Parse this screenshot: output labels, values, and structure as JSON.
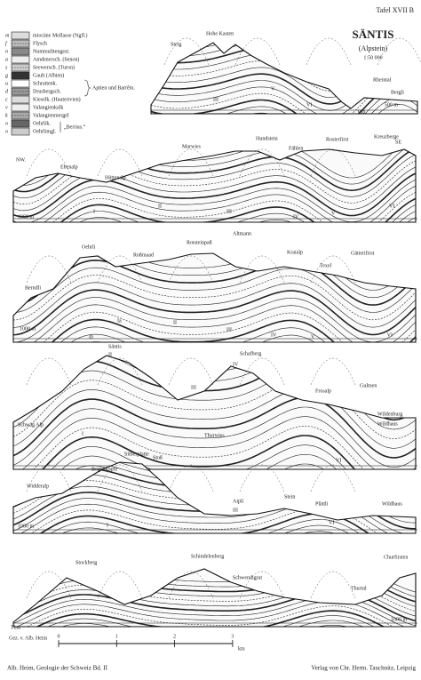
{
  "header": {
    "plate": "Tafel XVII B",
    "title": "SÄNTIS",
    "subtitle": "(Alpstein)",
    "scale": "1:50 000"
  },
  "legend": {
    "items": [
      {
        "letter": "m",
        "label": "miocäne Mollasse (Ngfl.)"
      },
      {
        "letter": "f",
        "label": "Flysch"
      },
      {
        "letter": "n",
        "label": "Nummulitengest."
      },
      {
        "letter": "a",
        "label": "Amdenersch. (Senon)"
      },
      {
        "letter": "s",
        "label": "Seewersch. (Turon)"
      },
      {
        "letter": "g",
        "label": "Gault (Albien)"
      },
      {
        "letter": "u",
        "label": "Schrattenk."
      },
      {
        "letter": "d",
        "label": "Drusbergsch."
      },
      {
        "letter": "c",
        "label": "Kieselk. (Hauterivien)"
      },
      {
        "letter": "v",
        "label": "Valangienkalk"
      },
      {
        "letter": "k",
        "label": "Valangienmergel"
      },
      {
        "letter": "o",
        "label": "Oehrlik."
      },
      {
        "letter": "o",
        "label": "Oehrlimgl."
      }
    ],
    "group_aptien": "Aptien und Barrêm.",
    "group_berrias": "„Berrias.“"
  },
  "sections": [
    {
      "labels": [
        "Hohe Kasten",
        "Steig",
        "Rheintal",
        "Bergli",
        "500 m",
        "III",
        "V",
        "VI",
        "VIb"
      ]
    },
    {
      "labels": [
        "NW.",
        "SE",
        "Ebenalp",
        "Hüttenalp",
        "Marwies",
        "Hundstein",
        "Fählen",
        "Rosterfirst",
        "Kreuzberge",
        "1000 m",
        "I",
        "II",
        "III",
        "IV",
        "V",
        "VI"
      ]
    },
    {
      "labels": [
        "Oehrli",
        "Roßmaad",
        "Rotsteinpaß",
        "Altmann",
        "Kraialp",
        "Gätterifirst",
        "Berndli",
        "Texel",
        "1000 m",
        "Ia",
        "Ib",
        "II",
        "III",
        "IV",
        "V",
        "VI"
      ]
    },
    {
      "labels": [
        "Säntis",
        "II",
        "Schafberg",
        "IV",
        "III",
        "Frosalp",
        "Gulmen",
        "Wildenburg",
        "Wildhaus",
        "Schwäg Alp",
        "Thurwies",
        "I",
        "VI"
      ]
    },
    {
      "labels": [
        "Bogenkopfe",
        "Silberplatte",
        "Stoß",
        "Widderalp",
        "Aipli",
        "III",
        "Stein",
        "Plättli",
        "Wildhaus",
        "1000 m",
        "I",
        "VI"
      ]
    },
    {
      "labels": [
        "Stockberg",
        "Schindelenberg",
        "Schwendigrat",
        "Thurtal",
        "Churfirsten",
        "Thur",
        "Gez. v. Alb. Heim",
        "1000 m"
      ]
    }
  ],
  "scale_bar": {
    "ticks": [
      "0",
      "1",
      "2",
      "3"
    ],
    "unit": "km"
  },
  "footer": {
    "left": "Alb. Heim, Geologie der Schweiz Bd. II",
    "right": "Verlag von Chr. Herm. Tauchnitz, Leipzig"
  }
}
